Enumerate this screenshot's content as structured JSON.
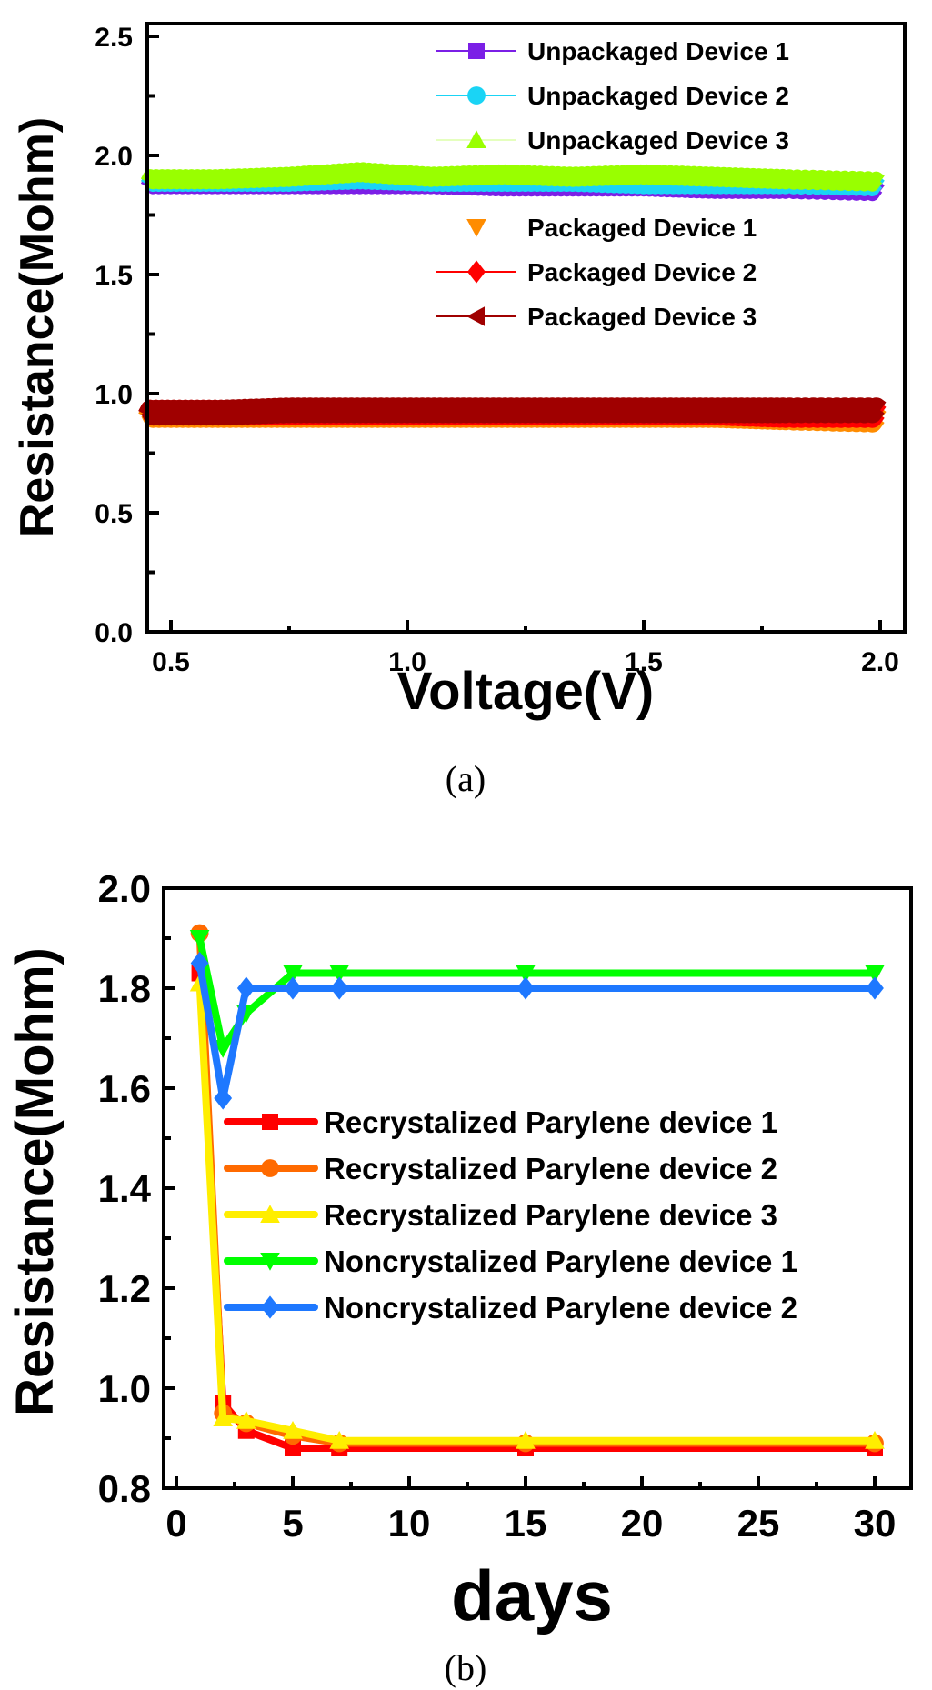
{
  "chart_data": [
    {
      "panel": "(a)",
      "type": "scatter",
      "xlabel": "Voltage(V)",
      "ylabel": "Resistance(Mohm)",
      "xlim": [
        0.45,
        2.05
      ],
      "ylim": [
        0.0,
        2.55
      ],
      "xticks": [
        "0.5",
        "1.0",
        "1.5",
        "2.0"
      ],
      "yticks": [
        "0.0",
        "0.5",
        "1.0",
        "1.5",
        "2.0",
        "2.5"
      ],
      "grid": false,
      "legend_position": "upper right",
      "x": [
        0.45,
        0.6,
        0.75,
        0.9,
        1.05,
        1.2,
        1.35,
        1.5,
        1.65,
        1.8,
        2.0
      ],
      "series": [
        {
          "name": "Unpackaged Device 1",
          "color": "#7b1fe6",
          "marker": "square",
          "values": [
            1.88,
            1.88,
            1.88,
            1.88,
            1.88,
            1.87,
            1.87,
            1.87,
            1.86,
            1.86,
            1.85
          ]
        },
        {
          "name": "Unpackaged Device 2",
          "color": "#1ad4f5",
          "marker": "circle",
          "values": [
            1.89,
            1.89,
            1.89,
            1.9,
            1.89,
            1.89,
            1.89,
            1.88,
            1.88,
            1.88,
            1.87
          ]
        },
        {
          "name": "Unpackaged Device 3",
          "color": "#99ff00",
          "marker": "triangle-up",
          "values": [
            1.9,
            1.9,
            1.91,
            1.93,
            1.91,
            1.92,
            1.91,
            1.92,
            1.91,
            1.9,
            1.89
          ]
        },
        {
          "name": "Packaged Device 1",
          "color": "#ff8c00",
          "marker": "triangle-down",
          "values": [
            0.91,
            0.91,
            0.91,
            0.91,
            0.91,
            0.91,
            0.91,
            0.91,
            0.91,
            0.9,
            0.89
          ]
        },
        {
          "name": "Packaged Device 2",
          "color": "#ff0000",
          "marker": "diamond",
          "values": [
            0.92,
            0.92,
            0.92,
            0.92,
            0.92,
            0.92,
            0.92,
            0.92,
            0.92,
            0.91,
            0.91
          ]
        },
        {
          "name": "Packaged Device 3",
          "color": "#a00000",
          "marker": "triangle-left",
          "values": [
            0.92,
            0.92,
            0.93,
            0.93,
            0.93,
            0.93,
            0.93,
            0.93,
            0.93,
            0.93,
            0.93
          ]
        }
      ]
    },
    {
      "panel": "(b)",
      "type": "line",
      "xlabel": "days",
      "ylabel": "Resistance(Mohm)",
      "xlim": [
        -1.2,
        31.5
      ],
      "ylim": [
        0.8,
        2.0
      ],
      "xticks": [
        "0",
        "5",
        "10",
        "15",
        "20",
        "25",
        "30"
      ],
      "yticks": [
        "0.8",
        "1.0",
        "1.2",
        "1.4",
        "1.6",
        "1.8",
        "2.0"
      ],
      "grid": false,
      "legend_position": "center",
      "x": [
        1,
        2,
        3,
        5,
        7,
        15,
        30
      ],
      "series": [
        {
          "name": "Recrystalized Parylene device 1",
          "color": "#ff0000",
          "marker": "square",
          "values": [
            1.83,
            0.97,
            0.915,
            0.88,
            0.88,
            0.88,
            0.88
          ]
        },
        {
          "name": "Recrystalized Parylene device 2",
          "color": "#ff6a00",
          "marker": "circle",
          "values": [
            1.91,
            0.95,
            0.93,
            0.905,
            0.89,
            0.89,
            0.89
          ]
        },
        {
          "name": "Recrystalized Parylene device 3",
          "color": "#ffee00",
          "marker": "triangle-up",
          "values": [
            1.81,
            0.94,
            0.935,
            0.915,
            0.895,
            0.895,
            0.895
          ]
        },
        {
          "name": "Noncrystalized Parylene device 1",
          "color": "#00ff00",
          "marker": "triangle-down",
          "values": [
            1.9,
            1.68,
            1.75,
            1.83,
            1.83,
            1.83,
            1.83
          ]
        },
        {
          "name": "Noncrystalized Parylene device 2",
          "color": "#1e78ff",
          "marker": "diamond",
          "values": [
            1.85,
            1.58,
            1.8,
            1.8,
            1.8,
            1.8,
            1.8
          ]
        }
      ]
    }
  ],
  "captions": {
    "a": "(a)",
    "b": "(b)"
  }
}
